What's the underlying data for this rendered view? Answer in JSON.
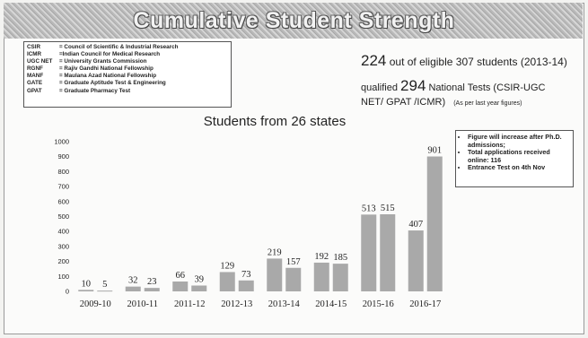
{
  "title": "Cumulative Student Strength",
  "abbreviations": [
    {
      "code": "CSIR",
      "desc": "= Council of Scientific & Industrial Research"
    },
    {
      "code": "ICMR",
      "desc": "=Indian Council for Medical Research"
    },
    {
      "code": "UGC NET",
      "desc": "= University Grants Commission"
    },
    {
      "code": "RGNF",
      "desc": "= Rajiv Gandhi National Fellowship"
    },
    {
      "code": "MANF",
      "desc": "= Maulana Azad National Fellowship"
    },
    {
      "code": "GATE",
      "desc": "= Graduate Aptitude Test & Engineering"
    },
    {
      "code": "GPAT",
      "desc": "= Graduate Pharmacy Test"
    }
  ],
  "stats": {
    "eligible_count": "224",
    "eligible_text": "out of eligible 307 students (2013-14)",
    "qualified_prefix": "qualified",
    "qualified_count": "294",
    "qualified_text": "National Tests (CSIR-UGC",
    "qualified_text_2": "NET/ GPAT /ICMR)",
    "qualified_note": "(As per last year figures)"
  },
  "note_box": [
    "Figure will increase after Ph.D. admissions;",
    "Total applications received online: 116",
    "Entrance Test on 4th Nov"
  ],
  "chart_data": {
    "type": "bar",
    "title": "Students from 26 states",
    "categories": [
      "2009-10",
      "2010-11",
      "2011-12",
      "2012-13",
      "2013-14",
      "2014-15",
      "2015-16",
      "2016-17"
    ],
    "series": [
      {
        "values": [
          10,
          32,
          66,
          129,
          219,
          192,
          513,
          407
        ]
      },
      {
        "values": [
          5,
          23,
          39,
          73,
          157,
          185,
          515,
          901
        ]
      }
    ],
    "data_labels": [
      [
        "10",
        "32",
        "66",
        "129",
        "219",
        "192",
        "513",
        "407"
      ],
      [
        "5",
        "23",
        "39",
        "73",
        "157",
        "185",
        "515",
        "901"
      ]
    ],
    "y_ticks": [
      0,
      100,
      200,
      300,
      400,
      500,
      600,
      700,
      800,
      900,
      1000
    ],
    "ylim": [
      0,
      1000
    ],
    "bar_color": "#a9a9a9",
    "grid": false
  }
}
